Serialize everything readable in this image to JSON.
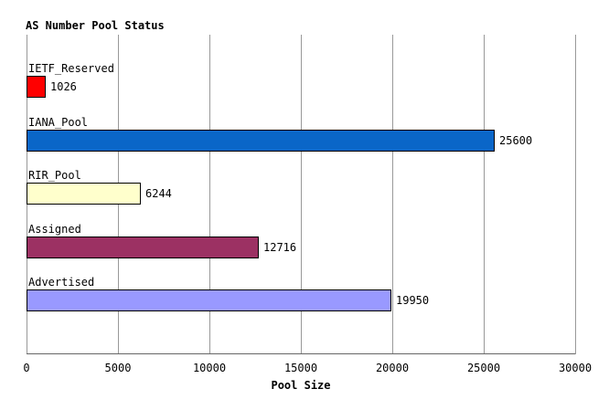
{
  "chart_data": {
    "type": "bar",
    "orientation": "horizontal",
    "title": "AS Number Pool Status",
    "xlabel": "Pool Size",
    "categories": [
      "IETF_Reserved",
      "IANA_Pool",
      "RIR_Pool",
      "Assigned",
      "Advertised"
    ],
    "values": [
      1026,
      25600,
      6244,
      12716,
      19950
    ],
    "value_labels": [
      "1026",
      "25600",
      "6244",
      "12716",
      "19950"
    ],
    "bar_colors": [
      "#ff0000",
      "#0a66c8",
      "#ffffcc",
      "#9c3163",
      "#9999ff"
    ],
    "bar_border_color": "#000000",
    "xlim": [
      0,
      30000
    ],
    "xticks": [
      0,
      5000,
      10000,
      15000,
      20000,
      25000,
      30000
    ],
    "xtick_labels": [
      "0",
      "5000",
      "10000",
      "15000",
      "20000",
      "25000",
      "30000"
    ],
    "grid": "vertical-only",
    "gridline_color": "#999999",
    "axis_color": "#666666",
    "text_color": "#000000",
    "background": "#ffffff",
    "legend": "none"
  }
}
